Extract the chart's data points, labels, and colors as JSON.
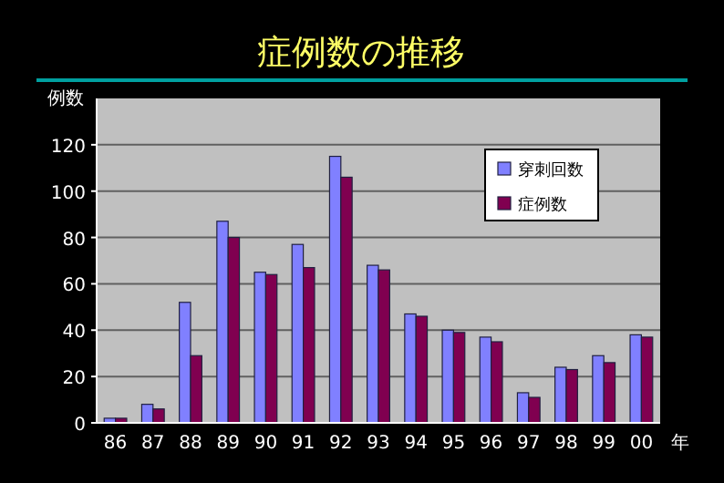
{
  "chart_data": {
    "type": "bar",
    "title": "症例数の推移",
    "xlabel": "年",
    "ylabel": "例数",
    "categories": [
      "86",
      "87",
      "88",
      "89",
      "90",
      "91",
      "92",
      "93",
      "94",
      "95",
      "96",
      "97",
      "98",
      "99",
      "00"
    ],
    "series": [
      {
        "name": "穿刺回数",
        "color": "#8080ff",
        "values": [
          2,
          8,
          52,
          87,
          65,
          77,
          115,
          68,
          47,
          40,
          37,
          13,
          24,
          29,
          38
        ]
      },
      {
        "name": "症例数",
        "color": "#800050",
        "values": [
          2,
          6,
          29,
          80,
          64,
          67,
          106,
          66,
          46,
          39,
          35,
          11,
          23,
          26,
          37
        ]
      }
    ],
    "ylim": [
      0,
      140
    ],
    "yticks": [
      0,
      20,
      40,
      60,
      80,
      100,
      120
    ],
    "grid": "y",
    "legend": "top right"
  }
}
